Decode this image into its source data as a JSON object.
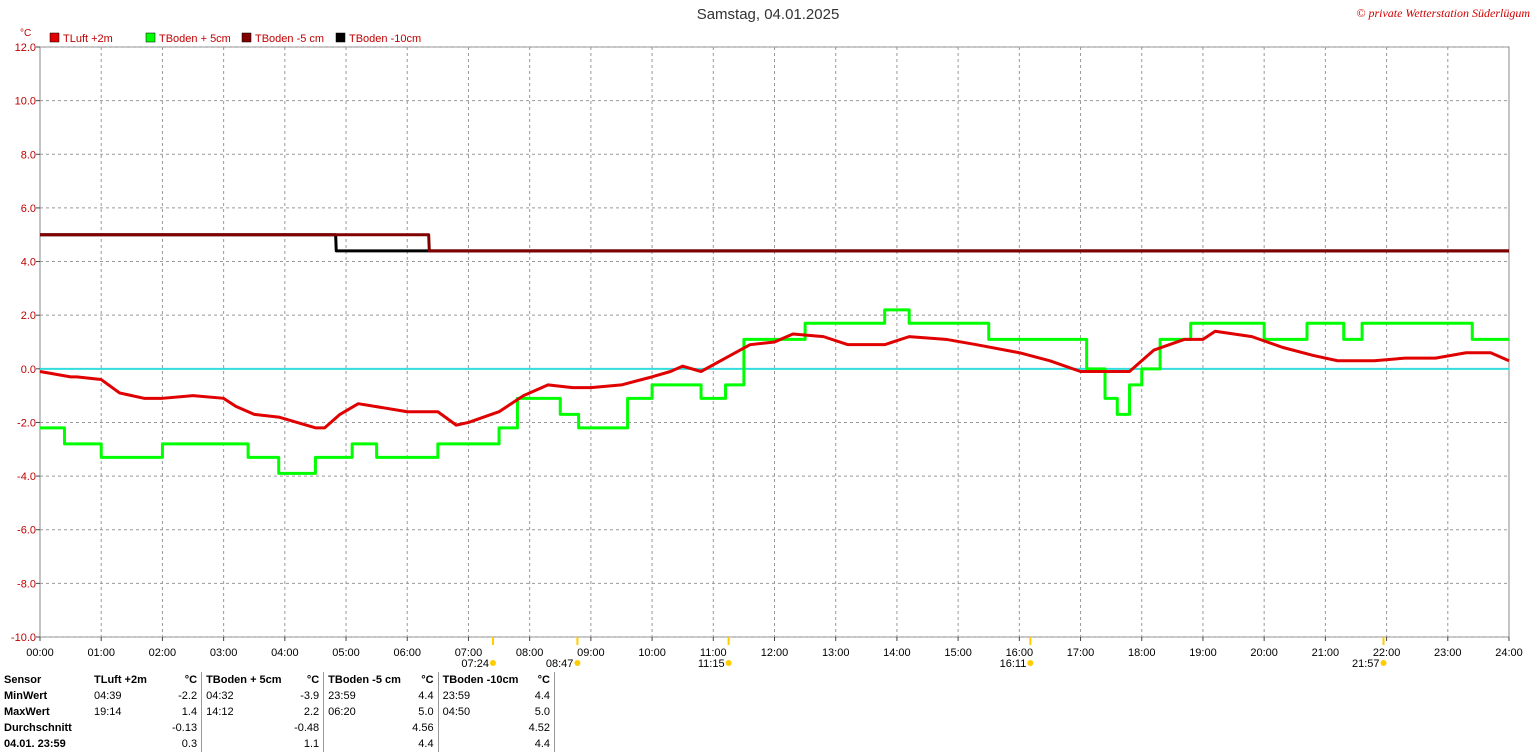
{
  "title": "Samstag, 04.01.2025",
  "copyright": "© private Wetterstation Süderlügum",
  "unit": "°C",
  "legend": [
    {
      "name": "TLuft +2m",
      "color": "#e00000"
    },
    {
      "name": "TBoden + 5cm",
      "color": "#00ff00"
    },
    {
      "name": "TBoden -5 cm",
      "color": "#800000"
    },
    {
      "name": "TBoden -10cm",
      "color": "#000000"
    }
  ],
  "sun_markers": [
    {
      "label": "07:24",
      "time": 7.4
    },
    {
      "label": "08:47",
      "time": 8.78
    },
    {
      "label": "11:15",
      "time": 11.25
    },
    {
      "label": "16:11",
      "time": 16.18
    },
    {
      "label": "21:57",
      "time": 21.95
    }
  ],
  "chart_data": {
    "type": "line",
    "title": "Samstag, 04.01.2025",
    "ylabel": "°C",
    "xlim": [
      0,
      24
    ],
    "ylim": [
      -10,
      12
    ],
    "y_ticks": [
      "12.0",
      "10.0",
      "8.0",
      "6.0",
      "4.0",
      "2.0",
      "0.0",
      "-2.0",
      "-4.0",
      "-6.0",
      "-8.0",
      "-10.0"
    ],
    "x_ticks": [
      "00:00",
      "01:00",
      "02:00",
      "03:00",
      "04:00",
      "05:00",
      "06:00",
      "07:00",
      "08:00",
      "09:00",
      "10:00",
      "11:00",
      "12:00",
      "13:00",
      "14:00",
      "15:00",
      "16:00",
      "17:00",
      "18:00",
      "19:00",
      "20:00",
      "21:00",
      "22:00",
      "23:00",
      "24:00"
    ],
    "grid": true,
    "zero_line": 0,
    "series": [
      {
        "name": "TLuft +2m",
        "color": "#e00000",
        "x": [
          0,
          0.5,
          0.6,
          1.0,
          1.3,
          1.7,
          2.0,
          2.5,
          3.0,
          3.2,
          3.5,
          3.9,
          4.2,
          4.5,
          4.65,
          4.9,
          5.2,
          6.0,
          6.5,
          6.8,
          7.0,
          7.5,
          7.9,
          8.3,
          8.7,
          9.0,
          9.5,
          10.0,
          10.3,
          10.5,
          10.8,
          11.2,
          11.6,
          12.0,
          12.3,
          12.8,
          13.2,
          13.8,
          14.2,
          14.8,
          15.3,
          16.0,
          16.5,
          17.0,
          17.3,
          17.8,
          18.2,
          18.7,
          19.0,
          19.2,
          19.8,
          20.3,
          20.8,
          21.2,
          21.8,
          22.3,
          22.8,
          23.3,
          23.7,
          24.0
        ],
        "y": [
          -0.1,
          -0.3,
          -0.3,
          -0.4,
          -0.9,
          -1.1,
          -1.1,
          -1.0,
          -1.1,
          -1.4,
          -1.7,
          -1.8,
          -2.0,
          -2.2,
          -2.2,
          -1.7,
          -1.3,
          -1.6,
          -1.6,
          -2.1,
          -2.0,
          -1.6,
          -1.0,
          -0.6,
          -0.7,
          -0.7,
          -0.6,
          -0.3,
          -0.1,
          0.1,
          -0.1,
          0.4,
          0.9,
          1.0,
          1.3,
          1.2,
          0.9,
          0.9,
          1.2,
          1.1,
          0.9,
          0.6,
          0.3,
          -0.1,
          -0.1,
          -0.1,
          0.7,
          1.1,
          1.1,
          1.4,
          1.2,
          0.8,
          0.5,
          0.3,
          0.3,
          0.4,
          0.4,
          0.6,
          0.6,
          0.3
        ]
      },
      {
        "name": "TBoden + 5cm",
        "color": "#00ff00",
        "x": [
          0,
          0.2,
          0.4,
          0.9,
          1.0,
          1.3,
          1.8,
          2.0,
          2.3,
          2.7,
          3.0,
          3.4,
          3.5,
          3.9,
          4.5,
          5.1,
          5.5,
          6.2,
          6.5,
          7.0,
          7.5,
          7.8,
          8.0,
          8.5,
          8.8,
          9.2,
          9.6,
          10.0,
          10.3,
          10.8,
          11.2,
          11.5,
          12.0,
          12.5,
          13.0,
          13.7,
          13.8,
          14.2,
          15.0,
          15.5,
          16.0,
          16.5,
          17.0,
          17.1,
          17.4,
          17.6,
          17.8,
          18.0,
          18.3,
          18.8,
          19.5,
          20.0,
          20.5,
          20.7,
          21.0,
          21.3,
          21.6,
          22.0,
          23.0,
          23.4,
          24.0
        ],
        "y": [
          -2.2,
          -2.2,
          -2.8,
          -2.8,
          -3.3,
          -3.3,
          -3.3,
          -2.8,
          -2.8,
          -2.8,
          -2.8,
          -3.3,
          -3.3,
          -3.9,
          -3.3,
          -2.8,
          -3.3,
          -3.3,
          -2.8,
          -2.8,
          -2.2,
          -1.1,
          -1.1,
          -1.7,
          -2.2,
          -2.2,
          -1.1,
          -0.6,
          -0.6,
          -1.1,
          -0.6,
          1.1,
          1.1,
          1.7,
          1.7,
          1.7,
          2.2,
          1.7,
          1.7,
          1.1,
          1.1,
          1.1,
          1.1,
          0.0,
          -1.1,
          -1.7,
          -0.6,
          0.0,
          1.1,
          1.7,
          1.7,
          1.1,
          1.1,
          1.7,
          1.7,
          1.1,
          1.7,
          1.7,
          1.7,
          1.1,
          1.1
        ]
      },
      {
        "name": "TBoden -5 cm",
        "color": "#800000",
        "x": [
          0,
          4.85,
          4.86,
          6.35,
          6.36,
          24
        ],
        "y": [
          5.0,
          5.0,
          5.0,
          5.0,
          4.4,
          4.4
        ]
      },
      {
        "name": "TBoden -10cm",
        "color": "#000000",
        "x": [
          0,
          4.83,
          4.84,
          24
        ],
        "y": [
          5.0,
          5.0,
          4.4,
          4.4
        ]
      }
    ]
  },
  "stats_table": {
    "header": [
      "Sensor",
      "TLuft +2m",
      "°C",
      "TBoden + 5cm",
      "°C",
      "TBoden -5 cm",
      "°C",
      "TBoden -10cm",
      "°C"
    ],
    "rows": [
      [
        "MinWert",
        "04:39",
        "-2.2",
        "04:32",
        "-3.9",
        "23:59",
        "4.4",
        "23:59",
        "4.4"
      ],
      [
        "MaxWert",
        "19:14",
        "1.4",
        "14:12",
        "2.2",
        "06:20",
        "5.0",
        "04:50",
        "5.0"
      ],
      [
        "Durchschnitt",
        "",
        "-0.13",
        "",
        "-0.48",
        "",
        "4.56",
        "",
        "4.52"
      ],
      [
        "04.01. 23:59",
        "",
        "0.3",
        "",
        "1.1",
        "",
        "4.4",
        "",
        "4.4"
      ]
    ]
  }
}
